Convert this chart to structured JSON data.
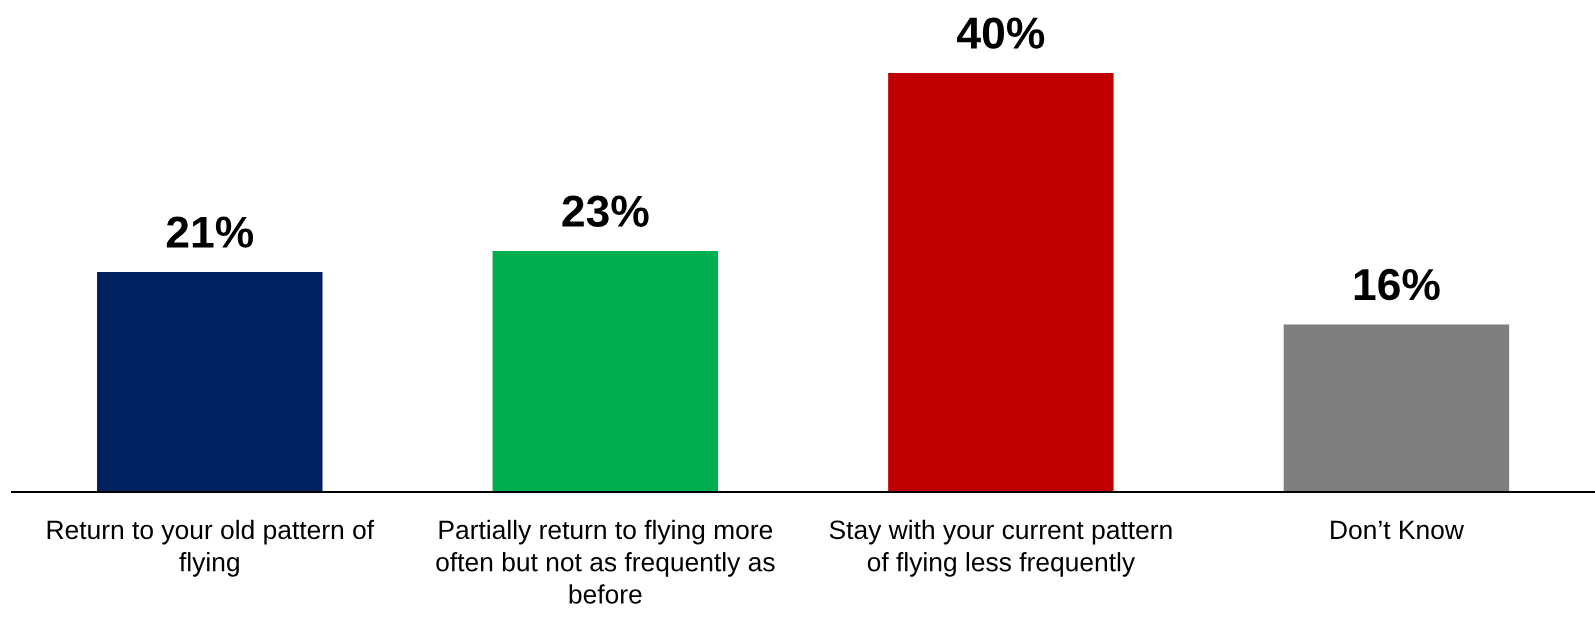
{
  "chart_data": {
    "type": "bar",
    "categories": [
      "Return to your old pattern of flying",
      "Partially return to flying more often but not as frequently as before",
      "Stay with your current pattern of flying less frequently",
      "Don’t Know"
    ],
    "values": [
      21,
      23,
      40,
      16
    ],
    "colors": [
      "#002060",
      "#00b050",
      "#c00000",
      "#7f7f7f"
    ],
    "value_labels": [
      "21%",
      "23%",
      "40%",
      "16%"
    ],
    "tick_labels": "x"
  }
}
